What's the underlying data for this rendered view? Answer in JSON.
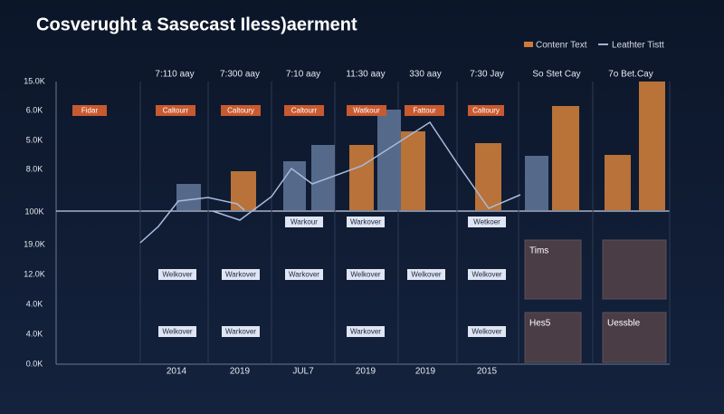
{
  "title": "Cosverught a Sasecast Iless)aerment",
  "legend": [
    "Contenr Text",
    "Leathter Tistt"
  ],
  "column_headers": [
    "7:110 aay",
    "7:300 aay",
    "7:10 aay",
    "11:30 aay",
    "330 aay",
    "7:30 Jay",
    "So Stet Cay",
    "7o Bet.Cay"
  ],
  "row_labels": [
    "15.0K",
    "6.0K",
    "5.0K",
    "8.0K",
    "100K",
    "19.0K",
    "12.0K",
    "4.0K",
    "4.0K",
    "0.0K"
  ],
  "footer_labels": [
    "2014",
    "2019",
    "JUL7",
    "2019",
    "2019",
    "2015"
  ],
  "orange_tags": [
    "Fidar",
    "Caltourr",
    "Caltoury",
    "Caltourr",
    "Watkour",
    "Fattour",
    "Caltoury"
  ],
  "tags_row_1": [
    "Warkour",
    "Warkover",
    "Wetkoer"
  ],
  "tags_row_2": [
    "Welkover",
    "Warkover",
    "Warkover",
    "Welkover",
    "Welkover",
    "Welkover"
  ],
  "tags_row_3": [
    "Welkover",
    "Warkover",
    "Warkover",
    "Welkover"
  ],
  "boxes": [
    "Tims",
    "",
    "Hes5",
    "Uessble"
  ]
}
